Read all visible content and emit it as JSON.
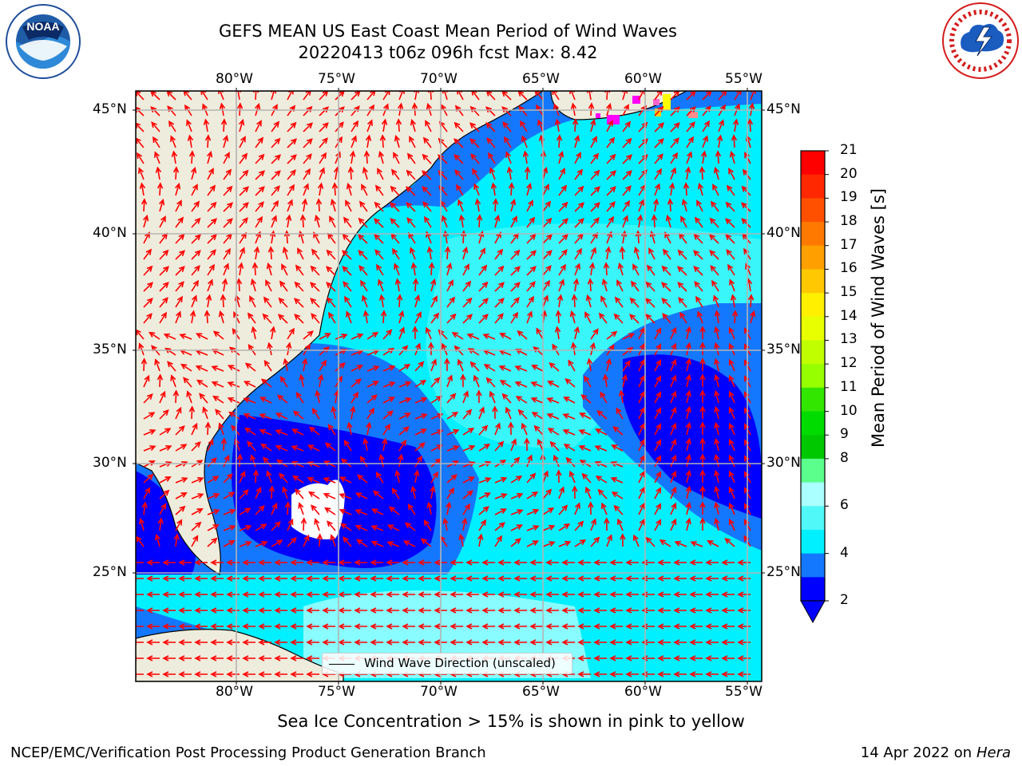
{
  "header": {
    "title_line1": "GEFS MEAN US East Coast Mean Period of Wind Waves",
    "title_line2": "20220413 t06z 096h fcst   Max: 8.42"
  },
  "logos": {
    "left": {
      "text": "NOAA",
      "icon": "noaa-logo",
      "ring_text": "NATIONAL OCEANIC AND ATMOSPHERIC ADMINISTRATION · U.S. DEPARTMENT OF COMMERCE"
    },
    "right": {
      "icon": "nws-logo",
      "ring_text": "NATIONAL WEATHER SERVICE"
    }
  },
  "map": {
    "lon_labels": [
      "80°W",
      "75°W",
      "70°W",
      "65°W",
      "60°W",
      "55°W"
    ],
    "lat_labels": [
      "45°N",
      "40°N",
      "35°N",
      "30°N",
      "25°N"
    ],
    "legend_text": "Wind Wave Direction (unscaled)",
    "arrow_color": "#ff0000",
    "land_color": "#eeecdc",
    "ice_colors": [
      "#ff00ff",
      "#ff66cc",
      "#ffff00"
    ]
  },
  "colorbar": {
    "label": "Mean Period of Wind Waves [s]",
    "ticks": [
      "21",
      "20",
      "19",
      "18",
      "17",
      "16",
      "15",
      "14",
      "13",
      "12",
      "11",
      "10",
      "9",
      "8",
      "6",
      "4",
      "2"
    ],
    "colors": [
      "#ff0000",
      "#ff2800",
      "#ff5000",
      "#ff7800",
      "#ffa000",
      "#ffc800",
      "#fff000",
      "#e8ff00",
      "#c0ff00",
      "#96ff00",
      "#32e600",
      "#00dc00",
      "#00c800",
      "#5aff8c",
      "#aaffff",
      "#50f8f8",
      "#00f0ff",
      "#1478ff",
      "#0000ff"
    ],
    "extend_color": "#0000ff"
  },
  "footer": {
    "subtitle": "Sea Ice Concentration > 15% is shown in pink to yellow",
    "left": "NCEP/EMC/Verification Post Processing Product Generation Branch",
    "right_date": "14 Apr 2022 on ",
    "right_host": "Hera"
  }
}
